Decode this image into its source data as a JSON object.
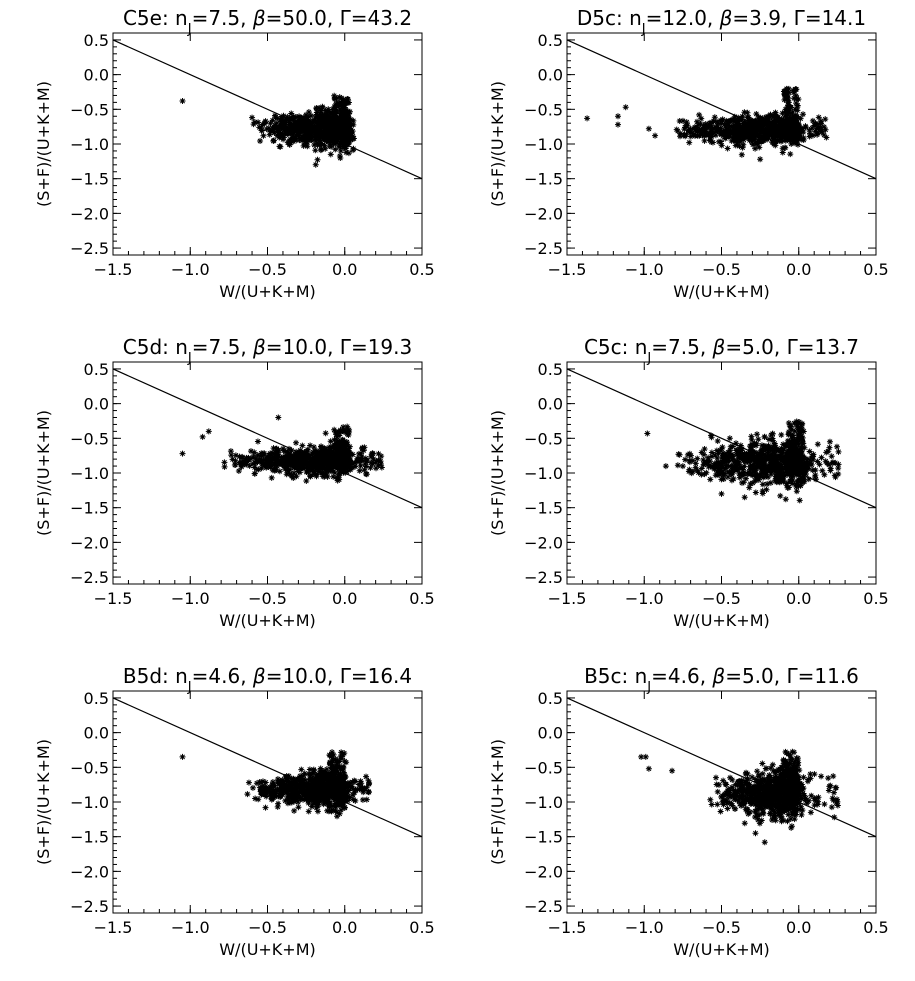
{
  "chart_data": [
    {
      "type": "scatter",
      "title": {
        "id": "C5e",
        "nj": "7.5",
        "beta": "50.0",
        "gamma": "43.2"
      },
      "xlabel": "W/(U+K+M)",
      "ylabel": "(S+F)/(U+K+M)",
      "xlim": [
        -1.5,
        0.5
      ],
      "ylim": [
        -2.6,
        0.6
      ],
      "xticks": [
        "-1.5",
        "-1.0",
        "-0.5",
        "0.0",
        "0.5"
      ],
      "yticks": [
        "0.5",
        "0.0",
        "-0.5",
        "-1.0",
        "-1.5",
        "-2.0",
        "-2.5"
      ],
      "reference_line": {
        "x": [
          -1.5,
          0.5
        ],
        "y": [
          0.5,
          -1.5
        ]
      },
      "cloud": {
        "x_range": [
          -0.62,
          0.06
        ],
        "y_center": -0.78,
        "y_spread": 0.13,
        "peak_x": -0.02,
        "peak_y": -0.33
      },
      "outliers": [
        {
          "x": -1.05,
          "y": -0.38
        },
        {
          "x": -0.6,
          "y": -0.62
        }
      ]
    },
    {
      "type": "scatter",
      "title": {
        "id": "D5c",
        "nj": "12.0",
        "beta": "3.9",
        "gamma": "14.1"
      },
      "xlabel": "W/(U+K+M)",
      "ylabel": "(S+F)/(U+K+M)",
      "xlim": [
        -1.5,
        0.5
      ],
      "ylim": [
        -2.6,
        0.6
      ],
      "xticks": [
        "-1.5",
        "-1.0",
        "-0.5",
        "0.0",
        "0.5"
      ],
      "yticks": [
        "0.5",
        "0.0",
        "-0.5",
        "-1.0",
        "-1.5",
        "-2.0",
        "-2.5"
      ],
      "reference_line": {
        "x": [
          -1.5,
          0.5
        ],
        "y": [
          0.5,
          -1.5
        ]
      },
      "cloud": {
        "x_range": [
          -0.85,
          0.18
        ],
        "y_center": -0.8,
        "y_spread": 0.1,
        "peak_x": -0.05,
        "peak_y": -0.2
      },
      "outliers": [
        {
          "x": -1.37,
          "y": -0.63
        },
        {
          "x": -1.17,
          "y": -0.6
        },
        {
          "x": -1.17,
          "y": -0.72
        },
        {
          "x": -1.12,
          "y": -0.47
        },
        {
          "x": -0.97,
          "y": -0.78
        },
        {
          "x": -0.93,
          "y": -0.88
        },
        {
          "x": -0.25,
          "y": -1.22
        }
      ]
    },
    {
      "type": "scatter",
      "title": {
        "id": "C5d",
        "nj": "7.5",
        "beta": "10.0",
        "gamma": "19.3"
      },
      "xlabel": "W/(U+K+M)",
      "ylabel": "(S+F)/(U+K+M)",
      "xlim": [
        -1.5,
        0.5
      ],
      "ylim": [
        -2.6,
        0.6
      ],
      "xticks": [
        "-1.5",
        "-1.0",
        "-0.5",
        "0.0",
        "0.5"
      ],
      "yticks": [
        "0.5",
        "0.0",
        "-0.5",
        "-1.0",
        "-1.5",
        "-2.0",
        "-2.5"
      ],
      "reference_line": {
        "x": [
          -1.5,
          0.5
        ],
        "y": [
          0.5,
          -1.5
        ]
      },
      "cloud": {
        "x_range": [
          -0.8,
          0.24
        ],
        "y_center": -0.82,
        "y_spread": 0.1,
        "peak_x": -0.02,
        "peak_y": -0.35
      },
      "outliers": [
        {
          "x": -1.05,
          "y": -0.72
        },
        {
          "x": -0.88,
          "y": -0.4
        },
        {
          "x": -0.92,
          "y": -0.48
        },
        {
          "x": -0.43,
          "y": -0.2
        },
        {
          "x": 0.24,
          "y": -0.92
        }
      ]
    },
    {
      "type": "scatter",
      "title": {
        "id": "C5c",
        "nj": "7.5",
        "beta": "5.0",
        "gamma": "13.7"
      },
      "xlabel": "W/(U+K+M)",
      "ylabel": "(S+F)/(U+K+M)",
      "xlim": [
        -1.5,
        0.5
      ],
      "ylim": [
        -2.6,
        0.6
      ],
      "xticks": [
        "-1.5",
        "-1.0",
        "-0.5",
        "0.0",
        "0.5"
      ],
      "yticks": [
        "0.5",
        "0.0",
        "-0.5",
        "-1.0",
        "-1.5",
        "-2.0",
        "-2.5"
      ],
      "reference_line": {
        "x": [
          -1.5,
          0.5
        ],
        "y": [
          0.5,
          -1.5
        ]
      },
      "cloud": {
        "x_range": [
          -0.8,
          0.26
        ],
        "y_center": -0.85,
        "y_spread": 0.16,
        "peak_x": -0.02,
        "peak_y": -0.25
      },
      "outliers": [
        {
          "x": -0.98,
          "y": -0.43
        },
        {
          "x": -0.86,
          "y": -0.9
        },
        {
          "x": -0.5,
          "y": -1.3
        },
        {
          "x": -0.35,
          "y": -1.35
        },
        {
          "x": -0.12,
          "y": -1.33
        }
      ]
    },
    {
      "type": "scatter",
      "title": {
        "id": "B5d",
        "nj": "4.6",
        "beta": "10.0",
        "gamma": "16.4"
      },
      "xlabel": "W/(U+K+M)",
      "ylabel": "(S+F)/(U+K+M)",
      "xlim": [
        -1.5,
        0.5
      ],
      "ylim": [
        -2.6,
        0.6
      ],
      "xticks": [
        "-1.5",
        "-1.0",
        "-0.5",
        "0.0",
        "0.5"
      ],
      "yticks": [
        "0.5",
        "0.0",
        "-0.5",
        "-1.0",
        "-1.5",
        "-2.0",
        "-2.5"
      ],
      "reference_line": {
        "x": [
          -1.5,
          0.5
        ],
        "y": [
          0.5,
          -1.5
        ]
      },
      "cloud": {
        "x_range": [
          -0.62,
          0.16
        ],
        "y_center": -0.82,
        "y_spread": 0.12,
        "peak_x": -0.05,
        "peak_y": -0.28
      },
      "outliers": [
        {
          "x": -1.05,
          "y": -0.35
        },
        {
          "x": -0.58,
          "y": -0.95
        },
        {
          "x": -0.62,
          "y": -0.72
        }
      ]
    },
    {
      "type": "scatter",
      "title": {
        "id": "B5c",
        "nj": "4.6",
        "beta": "5.0",
        "gamma": "11.6"
      },
      "xlabel": "W/(U+K+M)",
      "ylabel": "(S+F)/(U+K+M)",
      "xlim": [
        -1.5,
        0.5
      ],
      "ylim": [
        -2.6,
        0.6
      ],
      "xticks": [
        "-1.5",
        "-1.0",
        "-0.5",
        "0.0",
        "0.5"
      ],
      "yticks": [
        "0.5",
        "0.0",
        "-0.5",
        "-1.0",
        "-1.5",
        "-2.0",
        "-2.5"
      ],
      "reference_line": {
        "x": [
          -1.5,
          0.5
        ],
        "y": [
          0.5,
          -1.5
        ]
      },
      "cloud": {
        "x_range": [
          -0.58,
          0.26
        ],
        "y_center": -0.88,
        "y_spread": 0.17,
        "peak_x": -0.05,
        "peak_y": -0.3
      },
      "outliers": [
        {
          "x": -1.02,
          "y": -0.35
        },
        {
          "x": -0.99,
          "y": -0.35
        },
        {
          "x": -0.97,
          "y": -0.52
        },
        {
          "x": -0.82,
          "y": -0.55
        },
        {
          "x": -0.22,
          "y": -1.58
        },
        {
          "x": -0.28,
          "y": -1.45
        },
        {
          "x": 0.23,
          "y": -1.22
        }
      ]
    }
  ]
}
